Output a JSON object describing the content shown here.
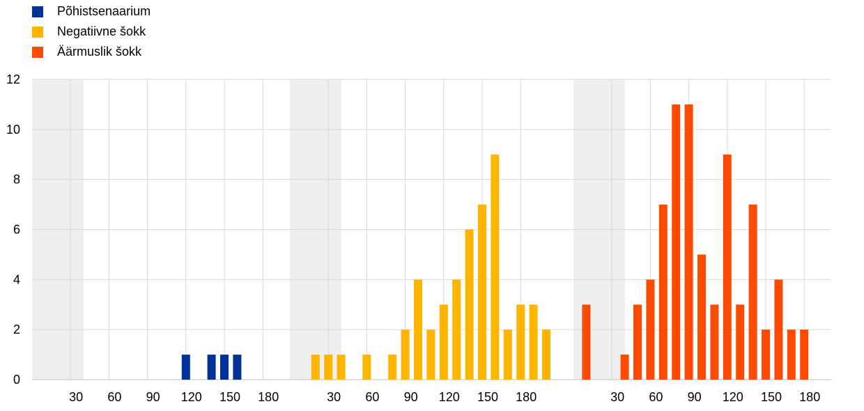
{
  "chart_data": {
    "type": "bar",
    "ylim": [
      0,
      12
    ],
    "y_ticks": [
      0,
      2,
      4,
      6,
      8,
      10,
      12
    ],
    "x_tick_labels": [
      30,
      60,
      90,
      120,
      150,
      180
    ],
    "grid": "on",
    "legend_position": "top-left",
    "series": [
      {
        "name": "Põhistsenaarium",
        "color": "#003399",
        "x": [
          120,
          140,
          150,
          160
        ],
        "values": [
          1,
          1,
          1,
          1
        ]
      },
      {
        "name": "Negatiivne šokk",
        "color": "#FFB400",
        "x": [
          20,
          30,
          40,
          60,
          80,
          90,
          100,
          110,
          120,
          130,
          140,
          150,
          160,
          170,
          180,
          190,
          200,
          210,
          220
        ],
        "values": [
          1,
          1,
          1,
          1,
          1,
          2,
          4,
          2,
          3,
          4,
          6,
          7,
          9,
          2,
          3,
          3,
          2,
          0,
          0
        ]
      },
      {
        "name": "Äärmuslik šokk",
        "color": "#FF4B00",
        "x": [
          10,
          40,
          50,
          60,
          70,
          80,
          90,
          100,
          110,
          120,
          130,
          140,
          150,
          160,
          170,
          180
        ],
        "values": [
          3,
          1,
          3,
          4,
          7,
          11,
          11,
          5,
          3,
          9,
          3,
          7,
          2,
          4,
          2,
          2
        ]
      }
    ]
  }
}
